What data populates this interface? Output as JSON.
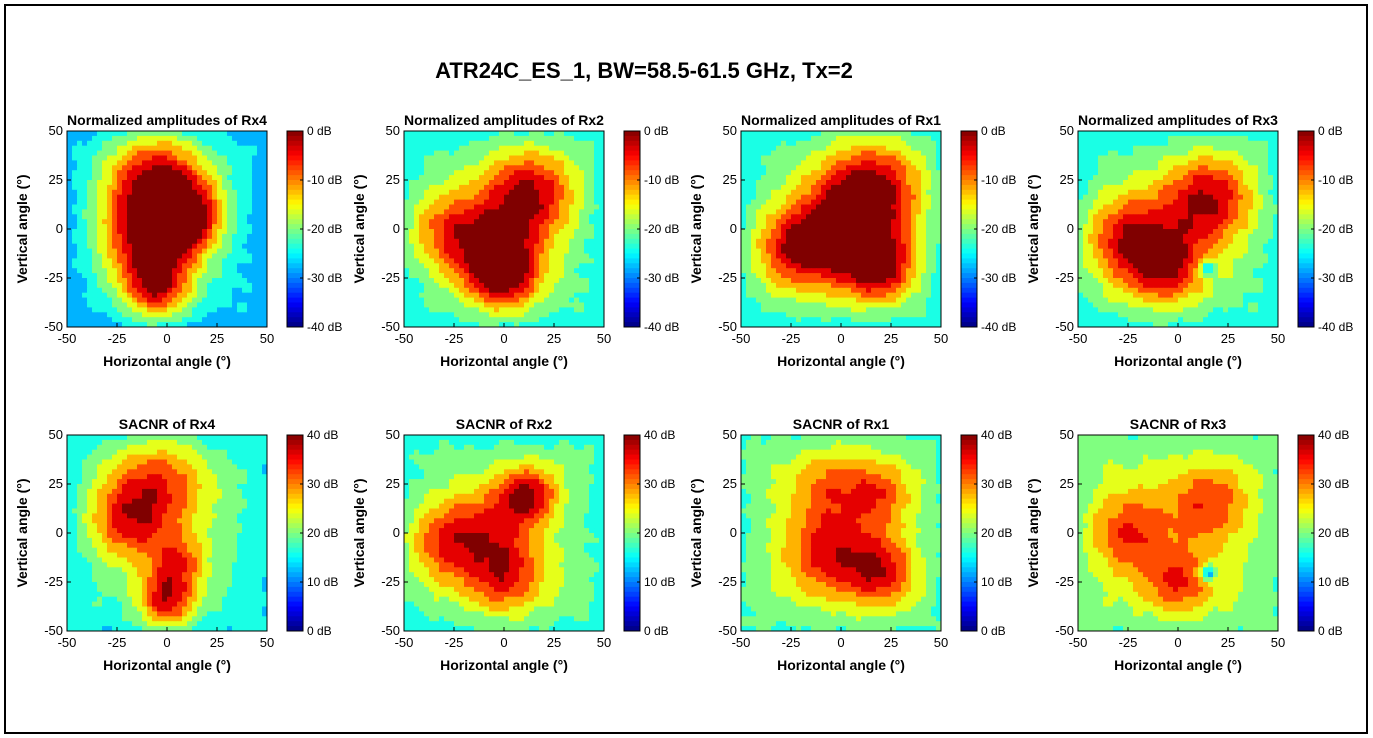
{
  "figure": {
    "title": "ATR24C_ES_1, BW=58.5-61.5 GHz, Tx=2",
    "xlabel": "Horizontal angle (°)",
    "ylabel": "Vertical angle (°)"
  },
  "colors": {
    "frame": "#000000",
    "contour_line": "#1a1a1a",
    "background": "#ffffff"
  },
  "chart_data": [
    {
      "type": "heatmap",
      "title": "Normalized amplitudes of Rx4",
      "xlabel": "Horizontal angle (°)",
      "ylabel": "Vertical angle (°)",
      "x_ticks": [
        -50,
        -25,
        0,
        25,
        50
      ],
      "y_ticks": [
        -50,
        -25,
        0,
        25,
        50
      ],
      "xlim": [
        -50,
        50
      ],
      "ylim": [
        -50,
        50
      ],
      "colorbar": {
        "range": [
          -40,
          0
        ],
        "ticks": [
          "0 dB",
          "-10 dB",
          "-20 dB",
          "-30 dB",
          "-40 dB"
        ],
        "colormap": "jet"
      },
      "blobs": [
        {
          "x": -5,
          "y": 25,
          "v": -1,
          "s": 18
        },
        {
          "x": -10,
          "y": -5,
          "v": -4,
          "s": 16
        },
        {
          "x": -5,
          "y": -30,
          "v": -4,
          "s": 12
        },
        {
          "x": 10,
          "y": 5,
          "v": -3,
          "s": 12
        }
      ],
      "base": -24
    },
    {
      "type": "heatmap",
      "title": "Normalized amplitudes of Rx2",
      "xlabel": "Horizontal angle (°)",
      "ylabel": "Vertical angle (°)",
      "x_ticks": [
        -50,
        -25,
        0,
        25,
        50
      ],
      "y_ticks": [
        -50,
        -25,
        0,
        25,
        50
      ],
      "xlim": [
        -50,
        50
      ],
      "ylim": [
        -50,
        50
      ],
      "colorbar": {
        "range": [
          -40,
          0
        ],
        "ticks": [
          "0 dB",
          "-10 dB",
          "-20 dB",
          "-30 dB",
          "-40 dB"
        ],
        "colormap": "jet"
      },
      "blobs": [
        {
          "x": 12,
          "y": 18,
          "v": -1,
          "s": 16
        },
        {
          "x": -5,
          "y": -10,
          "v": -3,
          "s": 15
        },
        {
          "x": 0,
          "y": -25,
          "v": -3,
          "s": 12
        },
        {
          "x": -30,
          "y": 0,
          "v": -8,
          "s": 14
        }
      ],
      "base": -20
    },
    {
      "type": "heatmap",
      "title": "Normalized amplitudes of Rx1",
      "xlabel": "Horizontal angle (°)",
      "ylabel": "Vertical angle (°)",
      "x_ticks": [
        -50,
        -25,
        0,
        25,
        50
      ],
      "y_ticks": [
        -50,
        -25,
        0,
        25,
        50
      ],
      "xlim": [
        -50,
        50
      ],
      "ylim": [
        -50,
        50
      ],
      "colorbar": {
        "range": [
          -40,
          0
        ],
        "ticks": [
          "0 dB",
          "-10 dB",
          "-20 dB",
          "-30 dB",
          "-40 dB"
        ],
        "colormap": "jet"
      },
      "blobs": [
        {
          "x": 15,
          "y": 20,
          "v": 0,
          "s": 18
        },
        {
          "x": 0,
          "y": -5,
          "v": -2,
          "s": 18
        },
        {
          "x": 20,
          "y": -20,
          "v": -3,
          "s": 12
        },
        {
          "x": -25,
          "y": -10,
          "v": -6,
          "s": 14
        }
      ],
      "base": -20
    },
    {
      "type": "heatmap",
      "title": "Normalized amplitudes of Rx3",
      "xlabel": "Horizontal angle (°)",
      "ylabel": "Vertical angle (°)",
      "x_ticks": [
        -50,
        -25,
        0,
        25,
        50
      ],
      "y_ticks": [
        -50,
        -25,
        0,
        25,
        50
      ],
      "xlim": [
        -50,
        50
      ],
      "ylim": [
        -50,
        50
      ],
      "colorbar": {
        "range": [
          -40,
          0
        ],
        "ticks": [
          "0 dB",
          "-10 dB",
          "-20 dB",
          "-30 dB",
          "-40 dB"
        ],
        "colormap": "jet"
      },
      "blobs": [
        {
          "x": 15,
          "y": 15,
          "v": -1,
          "s": 16
        },
        {
          "x": -25,
          "y": -5,
          "v": -3,
          "s": 16
        },
        {
          "x": -5,
          "y": -20,
          "v": -4,
          "s": 14
        },
        {
          "x": 15,
          "y": -20,
          "v": -34,
          "s": 3
        }
      ],
      "base": -20
    },
    {
      "type": "heatmap",
      "title": "SACNR of Rx4",
      "xlabel": "Horizontal angle (°)",
      "ylabel": "Vertical angle (°)",
      "x_ticks": [
        -50,
        -25,
        0,
        25,
        50
      ],
      "y_ticks": [
        -50,
        -25,
        0,
        25,
        50
      ],
      "xlim": [
        -50,
        50
      ],
      "ylim": [
        -50,
        50
      ],
      "colorbar": {
        "range": [
          0,
          40
        ],
        "ticks": [
          "40 dB",
          "30 dB",
          "20 dB",
          "10 dB",
          "0 dB"
        ],
        "colormap": "jet"
      },
      "blobs": [
        {
          "x": -5,
          "y": 25,
          "v": 34,
          "s": 18
        },
        {
          "x": -20,
          "y": 5,
          "v": 32,
          "s": 14
        },
        {
          "x": 0,
          "y": -35,
          "v": 38,
          "s": 10
        },
        {
          "x": 5,
          "y": -15,
          "v": 32,
          "s": 10
        }
      ],
      "base": 19
    },
    {
      "type": "heatmap",
      "title": "SACNR of Rx2",
      "xlabel": "Horizontal angle (°)",
      "ylabel": "Vertical angle (°)",
      "x_ticks": [
        -50,
        -25,
        0,
        25,
        50
      ],
      "y_ticks": [
        -50,
        -25,
        0,
        25,
        50
      ],
      "xlim": [
        -50,
        50
      ],
      "ylim": [
        -50,
        50
      ],
      "colorbar": {
        "range": [
          0,
          40
        ],
        "ticks": [
          "40 dB",
          "30 dB",
          "20 dB",
          "10 dB",
          "0 dB"
        ],
        "colormap": "jet"
      },
      "blobs": [
        {
          "x": 12,
          "y": 20,
          "v": 38,
          "s": 10
        },
        {
          "x": -30,
          "y": -5,
          "v": 35,
          "s": 14
        },
        {
          "x": 0,
          "y": -22,
          "v": 36,
          "s": 14
        },
        {
          "x": -5,
          "y": 5,
          "v": 31,
          "s": 14
        }
      ],
      "base": 21
    },
    {
      "type": "heatmap",
      "title": "SACNR of Rx1",
      "xlabel": "Horizontal angle (°)",
      "ylabel": "Vertical angle (°)",
      "x_ticks": [
        -50,
        -25,
        0,
        25,
        50
      ],
      "y_ticks": [
        -50,
        -25,
        0,
        25,
        50
      ],
      "xlim": [
        -50,
        50
      ],
      "ylim": [
        -50,
        50
      ],
      "colorbar": {
        "range": [
          0,
          40
        ],
        "ticks": [
          "40 dB",
          "30 dB",
          "20 dB",
          "10 dB",
          "0 dB"
        ],
        "colormap": "jet"
      },
      "blobs": [
        {
          "x": -5,
          "y": -10,
          "v": 36,
          "s": 16
        },
        {
          "x": 20,
          "y": -20,
          "v": 36,
          "s": 12
        },
        {
          "x": -5,
          "y": 25,
          "v": 31,
          "s": 14
        },
        {
          "x": 20,
          "y": 20,
          "v": 32,
          "s": 12
        }
      ],
      "base": 22
    },
    {
      "type": "heatmap",
      "title": "SACNR of Rx3",
      "xlabel": "Horizontal angle (°)",
      "ylabel": "Vertical angle (°)",
      "x_ticks": [
        -50,
        -25,
        0,
        25,
        50
      ],
      "y_ticks": [
        -50,
        -25,
        0,
        25,
        50
      ],
      "xlim": [
        -50,
        50
      ],
      "ylim": [
        -50,
        50
      ],
      "colorbar": {
        "range": [
          0,
          40
        ],
        "ticks": [
          "40 dB",
          "30 dB",
          "20 dB",
          "10 dB",
          "0 dB"
        ],
        "colormap": "jet"
      },
      "blobs": [
        {
          "x": -25,
          "y": 0,
          "v": 35,
          "s": 14
        },
        {
          "x": 15,
          "y": 15,
          "v": 34,
          "s": 14
        },
        {
          "x": 0,
          "y": -25,
          "v": 35,
          "s": 12
        },
        {
          "x": 15,
          "y": -20,
          "v": 6,
          "s": 3
        }
      ],
      "base": 23
    }
  ]
}
